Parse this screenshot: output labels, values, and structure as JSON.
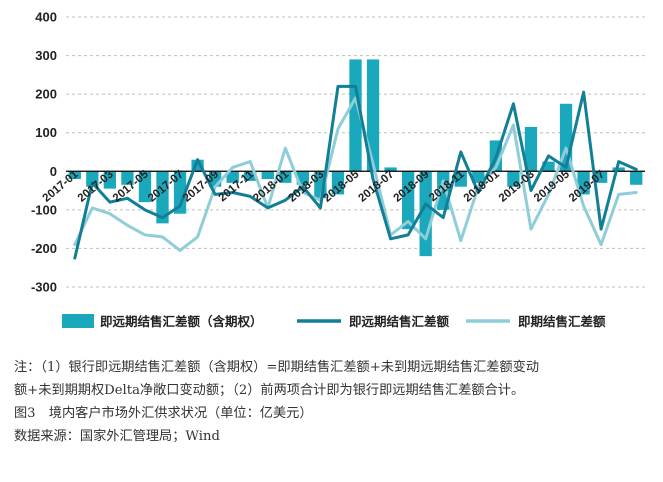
{
  "chart_data": {
    "type": "bar+line",
    "categories": [
      "2017-01",
      "2017-02",
      "2017-03",
      "2017-04",
      "2017-05",
      "2017-06",
      "2017-07",
      "2017-08",
      "2017-09",
      "2017-10",
      "2017-11",
      "2017-12",
      "2018-01",
      "2018-02",
      "2018-03",
      "2018-04",
      "2018-05",
      "2018-06",
      "2018-07",
      "2018-08",
      "2018-09",
      "2018-10",
      "2018-11",
      "2018-12",
      "2019-01",
      "2019-02",
      "2019-03",
      "2019-04",
      "2019-05",
      "2019-06",
      "2019-07",
      "2019-08",
      "2019-09"
    ],
    "tick_labels": [
      "2017-01",
      "2017-03",
      "2017-05",
      "2017-07",
      "2017-09",
      "2017-11",
      "2018-01",
      "2018-03",
      "2018-05",
      "2018-07",
      "2018-09",
      "2018-11",
      "2019-01",
      "2019-03",
      "2019-05",
      "2019-07"
    ],
    "ylim": [
      -300,
      400
    ],
    "yticks": [
      -300,
      -200,
      -100,
      0,
      100,
      200,
      300,
      400
    ],
    "legend_position": "bottom",
    "series": [
      {
        "name": "即远期结售汇差额（含期权）",
        "kind": "bar",
        "color": "#1aa8bc",
        "values": [
          -20,
          -40,
          -45,
          -35,
          -80,
          -135,
          -110,
          30,
          -40,
          -30,
          -25,
          -20,
          -30,
          -35,
          -70,
          -60,
          290,
          290,
          10,
          -150,
          -220,
          -100,
          -40,
          -30,
          80,
          -40,
          115,
          25,
          175,
          -60,
          -30,
          10,
          -35
        ]
      },
      {
        "name": "即远期结售汇差额",
        "kind": "line",
        "color": "#127f97",
        "values": [
          -225,
          -30,
          -80,
          -70,
          -100,
          -120,
          -90,
          30,
          -60,
          -55,
          -65,
          -95,
          -75,
          -40,
          -95,
          220,
          220,
          -20,
          -175,
          -165,
          -85,
          -120,
          50,
          -55,
          35,
          175,
          -50,
          40,
          10,
          205,
          -150,
          25,
          5
        ]
      },
      {
        "name": "即期结售汇差额",
        "kind": "line",
        "color": "#8fcdd9",
        "values": [
          -190,
          -95,
          -110,
          -140,
          -165,
          -170,
          -205,
          -170,
          -40,
          10,
          25,
          -95,
          60,
          -55,
          -75,
          110,
          190,
          20,
          -165,
          -130,
          -175,
          -25,
          -180,
          -40,
          10,
          120,
          -150,
          -60,
          60,
          -90,
          -190,
          -60,
          -55
        ]
      }
    ]
  },
  "notes": {
    "line1": "注：（1）银行即远期结售汇差额（含期权）=即期结售汇差额+未到期远期结售汇差额变动",
    "line2": "额+未到期期权Delta净敞口变动额；（2）前两项合计即为银行即远期结售汇差额合计。",
    "figure_title": "图3　境内客户市场外汇供求状况（单位：亿美元）",
    "source": "数据来源：国家外汇管理局；Wind"
  }
}
